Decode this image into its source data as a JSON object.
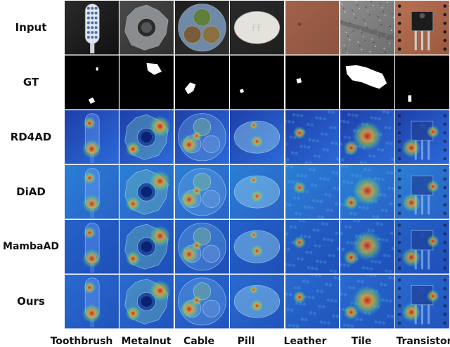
{
  "rows": [
    {
      "key": "input",
      "label": "Input"
    },
    {
      "key": "gt",
      "label": "GT"
    },
    {
      "key": "rd4ad",
      "label": "RD4AD"
    },
    {
      "key": "diad",
      "label": "DiAD"
    },
    {
      "key": "mambaad",
      "label": "MambaAD"
    },
    {
      "key": "ours",
      "label": "Ours"
    }
  ],
  "columns": [
    {
      "key": "toothbrush",
      "label": "Toothbrush"
    },
    {
      "key": "metalnut",
      "label": "Metalnut"
    },
    {
      "key": "cable",
      "label": "Cable"
    },
    {
      "key": "pill",
      "label": "Pill"
    },
    {
      "key": "leather",
      "label": "Leather"
    },
    {
      "key": "tile",
      "label": "Tile"
    },
    {
      "key": "transistor",
      "label": "Transistor"
    }
  ]
}
